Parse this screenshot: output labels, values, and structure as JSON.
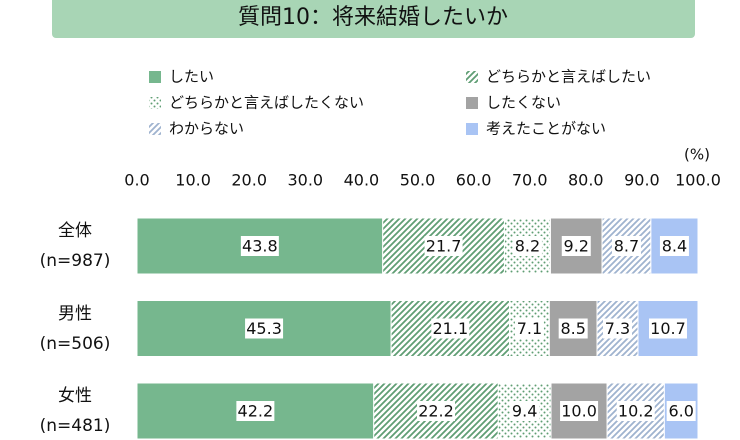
{
  "chart_data": {
    "type": "stacked_barh",
    "title": "質問10：将来結婚したいか",
    "unit": "(%)",
    "categories": [
      "全体\n(n=987)",
      "男性\n(n=506)",
      "女性\n(n=481)"
    ],
    "xlim": [
      0,
      100
    ],
    "xticks": [
      {
        "value": 0,
        "label": "0.0"
      },
      {
        "value": 10,
        "label": "10.0"
      },
      {
        "value": 20,
        "label": "20.0"
      },
      {
        "value": 30,
        "label": "30.0"
      },
      {
        "value": 40,
        "label": "40.0"
      },
      {
        "value": 50,
        "label": "50.0"
      },
      {
        "value": 60,
        "label": "60.0"
      },
      {
        "value": 70,
        "label": "70.0"
      },
      {
        "value": 80,
        "label": "80.0"
      },
      {
        "value": 90,
        "label": "90.0"
      },
      {
        "value": 100,
        "label": "100.0"
      }
    ],
    "series": [
      {
        "name": "したい",
        "color": "#76b78e",
        "pattern": "solid",
        "values": [
          43.8,
          45.3,
          42.2
        ],
        "value_labels": [
          "43.8",
          "45.3",
          "42.2"
        ]
      },
      {
        "name": "どちらかと言えばしたい",
        "color": "#5f9e74",
        "pattern": "diagonal",
        "values": [
          21.7,
          21.1,
          22.2
        ],
        "value_labels": [
          "21.7",
          "21.1",
          "22.2"
        ]
      },
      {
        "name": "どちらかと言えばしたくない",
        "color": "#5f9e74",
        "pattern": "dots",
        "values": [
          8.2,
          7.1,
          9.4
        ],
        "value_labels": [
          "8.2",
          "7.1",
          "9.4"
        ]
      },
      {
        "name": "したくない",
        "color": "#a3a3a3",
        "pattern": "solid",
        "values": [
          9.2,
          8.5,
          10.0
        ],
        "value_labels": [
          "9.2",
          "8.5",
          "10.0"
        ]
      },
      {
        "name": "わからない",
        "color": "#9fb3cf",
        "pattern": "diagonal",
        "values": [
          8.7,
          7.3,
          10.2
        ],
        "value_labels": [
          "8.7",
          "7.3",
          "10.2"
        ]
      },
      {
        "name": "考えたことがない",
        "color": "#a9c4f4",
        "pattern": "solid",
        "values": [
          8.4,
          10.7,
          6.0
        ],
        "value_labels": [
          "8.4",
          "10.7",
          "6.0"
        ]
      }
    ]
  }
}
